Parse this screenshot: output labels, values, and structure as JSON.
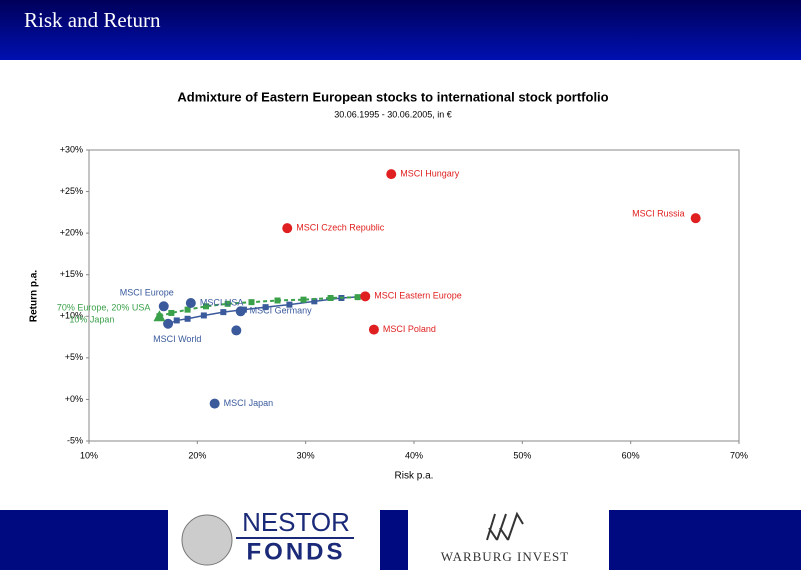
{
  "header": {
    "title": "Risk and Return"
  },
  "chart_data": {
    "type": "scatter",
    "title": "Admixture of Eastern European stocks to international stock portfolio",
    "subtitle": "30.06.1995 - 30.06.2005,  in €",
    "x_label": "Risk p.a.",
    "y_label": "Return p.a.",
    "xlim": [
      10,
      70
    ],
    "xticks": [
      {
        "value": 10,
        "label": "10%"
      },
      {
        "value": 20,
        "label": "20%"
      },
      {
        "value": 30,
        "label": "30%"
      },
      {
        "value": 40,
        "label": "40%"
      },
      {
        "value": 50,
        "label": "50%"
      },
      {
        "value": 60,
        "label": "60%"
      },
      {
        "value": 70,
        "label": "70%"
      }
    ],
    "ylim": [
      -5,
      30
    ],
    "yticks": [
      {
        "value": -5,
        "label": "-5%"
      },
      {
        "value": 0,
        "label": "+0%"
      },
      {
        "value": 5,
        "label": "+5%"
      },
      {
        "value": 10,
        "label": "+10%"
      },
      {
        "value": 15,
        "label": "+15%"
      },
      {
        "value": 20,
        "label": "+20%"
      },
      {
        "value": 25,
        "label": "+25%"
      },
      {
        "value": 30,
        "label": "+30%"
      }
    ],
    "series": [
      {
        "color": "#3a5a9c",
        "marker": "square",
        "dashed": false,
        "x": [
          17.3,
          18.1,
          19.1,
          20.6,
          22.4,
          24.3,
          26.3,
          28.5,
          30.8,
          33.3,
          35.5
        ],
        "values": [
          9.1,
          9.5,
          9.7,
          10.1,
          10.5,
          10.8,
          11.1,
          11.4,
          11.8,
          12.2,
          12.4
        ]
      },
      {
        "color": "#3aa04a",
        "marker": "square",
        "dashed": true,
        "x": [
          16.5,
          17.6,
          19.1,
          20.8,
          22.8,
          25.0,
          27.4,
          29.8,
          32.3,
          34.8,
          35.5
        ],
        "values": [
          10.0,
          10.4,
          10.8,
          11.2,
          11.5,
          11.7,
          11.9,
          12.0,
          12.2,
          12.3,
          12.4
        ]
      }
    ],
    "points": [
      {
        "label": [
          "MSCI Hungary"
        ],
        "x": 37.9,
        "y": 27.1,
        "color": "#e02020"
      },
      {
        "label": [
          "MSCI Russia"
        ],
        "x": 66.0,
        "y": 21.8,
        "color": "#e02020"
      },
      {
        "label": [
          "MSCI Czech Republic"
        ],
        "x": 28.3,
        "y": 20.6,
        "color": "#e02020"
      },
      {
        "label": [
          "MSCI Eastern Europe"
        ],
        "x": 35.5,
        "y": 12.4,
        "color": "#e02020"
      },
      {
        "label": [
          "MSCI Poland"
        ],
        "x": 36.3,
        "y": 8.4,
        "color": "#e02020"
      },
      {
        "label": [
          "MSCI Europe"
        ],
        "x": 16.9,
        "y": 11.2,
        "color": "#3a5a9c"
      },
      {
        "label": [
          "MSCI USA"
        ],
        "x": 19.4,
        "y": 11.6,
        "color": "#3a5a9c"
      },
      {
        "label": [
          "MSCI Germany"
        ],
        "x": 24.0,
        "y": 10.6,
        "color": "#3a5a9c"
      },
      {
        "label": [
          "MSCI World"
        ],
        "x": 17.3,
        "y": 9.1,
        "color": "#3a5a9c"
      },
      {
        "label": [
          "MSCI Japan"
        ],
        "x": 21.6,
        "y": -0.5,
        "color": "#3a5a9c"
      },
      {
        "x": 23.6,
        "y": 8.3,
        "color": "#3a5a9c"
      },
      {
        "label": [
          "70% Europe, 20% USA",
          "10% Japan"
        ],
        "x": 16.5,
        "y": 10.0,
        "color": "#3aa04a",
        "marker": "triangle"
      }
    ]
  },
  "footer": {
    "logo1_top": "NESTOR",
    "logo1_bottom": "FONDS",
    "logo2": "WARBURG INVEST"
  }
}
